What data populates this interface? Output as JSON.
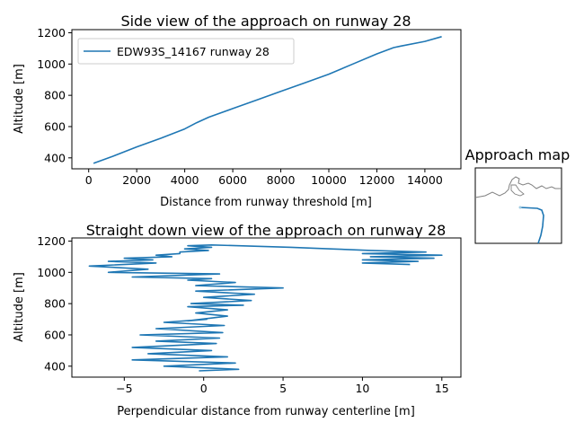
{
  "chart_data": [
    {
      "type": "line",
      "title": "Side view of the approach on runway 28",
      "xlabel": "Distance from runway threshold [m]",
      "ylabel": "Altitude [m]",
      "xlim": [
        -700,
        15500
      ],
      "ylim": [
        330,
        1220
      ],
      "xticks": [
        0,
        2000,
        4000,
        6000,
        8000,
        10000,
        12000,
        14000
      ],
      "yticks": [
        400,
        600,
        800,
        1000,
        1200
      ],
      "grid": false,
      "legend": "upper-left",
      "series": [
        {
          "name": "EDW93S_14167 runway 28",
          "color": "#1f77b4",
          "x": [
            200,
            1000,
            2000,
            3000,
            4000,
            4500,
            5000,
            6000,
            7000,
            8000,
            9000,
            10000,
            11000,
            12000,
            12700,
            13000,
            14000,
            14700
          ],
          "y": [
            365,
            410,
            470,
            525,
            585,
            625,
            660,
            715,
            770,
            825,
            880,
            935,
            1000,
            1065,
            1105,
            1115,
            1145,
            1175
          ]
        }
      ]
    },
    {
      "type": "line",
      "title": "Straight down view of the approach on runway 28",
      "xlabel": "Perpendicular distance from runway centerline [m]",
      "ylabel": "Altitude [m]",
      "xlim": [
        -8.3,
        16.2
      ],
      "ylim": [
        330,
        1220
      ],
      "xticks": [
        -5,
        0,
        5,
        10,
        15
      ],
      "yticks": [
        400,
        600,
        800,
        1000,
        1200
      ],
      "grid": false,
      "series": [
        {
          "name": "",
          "color": "#1f77b4",
          "x": [
            -0.3,
            2.2,
            -2.5,
            2,
            -4.5,
            1.5,
            -3.5,
            0.5,
            -4.5,
            0.8,
            -3,
            1,
            -4,
            1.2,
            -3,
            1.3,
            -2.5,
            0.2,
            -1,
            1.5,
            -0.5,
            1.5,
            -1,
            2.5,
            -0.8,
            3,
            0,
            3.2,
            -0.5,
            5,
            -0.5,
            2,
            -1,
            0.5,
            -4.5,
            1,
            -6,
            -3.5,
            -7.2,
            -3,
            -6,
            -3.2,
            -5,
            -2,
            -3,
            -1.5,
            -1.5,
            0.3,
            -1.2,
            0.5,
            -1,
            0.5,
            5.5,
            8,
            10.5,
            14,
            10,
            15,
            10.5,
            14.5,
            10,
            13.5,
            10,
            13
          ],
          "y": [
            370,
            380,
            400,
            420,
            440,
            460,
            480,
            500,
            520,
            545,
            560,
            580,
            600,
            615,
            640,
            660,
            680,
            700,
            690,
            720,
            740,
            760,
            780,
            790,
            800,
            820,
            840,
            860,
            880,
            900,
            915,
            935,
            950,
            960,
            970,
            990,
            1000,
            1020,
            1040,
            1060,
            1070,
            1080,
            1090,
            1100,
            1110,
            1120,
            1130,
            1140,
            1150,
            1160,
            1170,
            1175,
            1160,
            1150,
            1140,
            1130,
            1120,
            1110,
            1100,
            1090,
            1080,
            1070,
            1060,
            1050
          ]
        }
      ]
    }
  ],
  "map": {
    "title": "Approach map"
  }
}
